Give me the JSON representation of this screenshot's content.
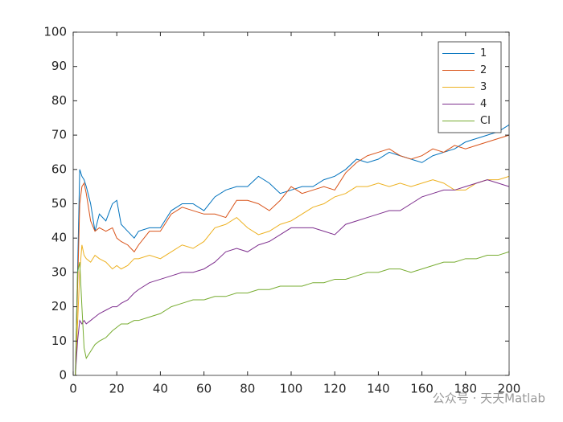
{
  "chart_data": {
    "type": "line",
    "x": [
      1,
      2,
      3,
      4,
      5,
      6,
      8,
      10,
      12,
      15,
      18,
      20,
      22,
      25,
      28,
      30,
      35,
      40,
      45,
      50,
      55,
      60,
      65,
      70,
      75,
      80,
      85,
      90,
      95,
      100,
      105,
      110,
      115,
      120,
      125,
      130,
      135,
      140,
      145,
      150,
      155,
      160,
      165,
      170,
      175,
      180,
      185,
      190,
      195,
      200
    ],
    "series": [
      {
        "name": "1",
        "color": "#0072BD",
        "values": [
          0,
          30,
          60,
          58,
          57,
          55,
          50,
          42,
          47,
          45,
          50,
          51,
          44,
          42,
          40,
          42,
          43,
          43,
          48,
          50,
          50,
          48,
          52,
          54,
          55,
          55,
          58,
          56,
          53,
          54,
          55,
          55,
          57,
          58,
          60,
          63,
          62,
          63,
          65,
          64,
          63,
          62,
          64,
          65,
          66,
          68,
          69,
          70,
          71,
          73
        ]
      },
      {
        "name": "2",
        "color": "#D95319",
        "values": [
          0,
          25,
          50,
          55,
          56,
          53,
          45,
          42,
          43,
          42,
          43,
          40,
          39,
          38,
          36,
          38,
          42,
          42,
          47,
          49,
          48,
          47,
          47,
          46,
          51,
          51,
          50,
          48,
          51,
          55,
          53,
          54,
          55,
          54,
          59,
          62,
          64,
          65,
          66,
          64,
          63,
          64,
          66,
          65,
          67,
          66,
          67,
          68,
          69,
          70
        ]
      },
      {
        "name": "3",
        "color": "#EDB120",
        "values": [
          0,
          15,
          30,
          38,
          35,
          34,
          33,
          35,
          34,
          33,
          31,
          32,
          31,
          32,
          34,
          34,
          35,
          34,
          36,
          38,
          37,
          39,
          43,
          44,
          46,
          43,
          41,
          42,
          44,
          45,
          47,
          49,
          50,
          52,
          53,
          55,
          55,
          56,
          55,
          56,
          55,
          56,
          57,
          56,
          54,
          54,
          56,
          57,
          57,
          58
        ]
      },
      {
        "name": "4",
        "color": "#7E2F8E",
        "values": [
          0,
          10,
          16,
          15,
          16,
          15,
          16,
          17,
          18,
          19,
          20,
          20,
          21,
          22,
          24,
          25,
          27,
          28,
          29,
          30,
          30,
          31,
          33,
          36,
          37,
          36,
          38,
          39,
          41,
          43,
          43,
          43,
          42,
          41,
          44,
          45,
          46,
          47,
          48,
          48,
          50,
          52,
          53,
          54,
          54,
          55,
          56,
          57,
          56,
          55
        ]
      },
      {
        "name": "CI",
        "color": "#77AC30",
        "values": [
          0,
          30,
          33,
          20,
          8,
          5,
          7,
          9,
          10,
          11,
          13,
          14,
          15,
          15,
          16,
          16,
          17,
          18,
          20,
          21,
          22,
          22,
          23,
          23,
          24,
          24,
          25,
          25,
          26,
          26,
          26,
          27,
          27,
          28,
          28,
          29,
          30,
          30,
          31,
          31,
          30,
          31,
          32,
          33,
          33,
          34,
          34,
          35,
          35,
          36
        ]
      }
    ],
    "xlim": [
      0,
      200
    ],
    "xticks": [
      0,
      20,
      40,
      60,
      80,
      100,
      120,
      140,
      160,
      180,
      200
    ],
    "ylim": [
      0,
      100
    ],
    "yticks": [
      0,
      10,
      20,
      30,
      40,
      50,
      60,
      70,
      80,
      90,
      100
    ],
    "legend": "northeast",
    "watermark": "公众号 · 天天Matlab"
  }
}
